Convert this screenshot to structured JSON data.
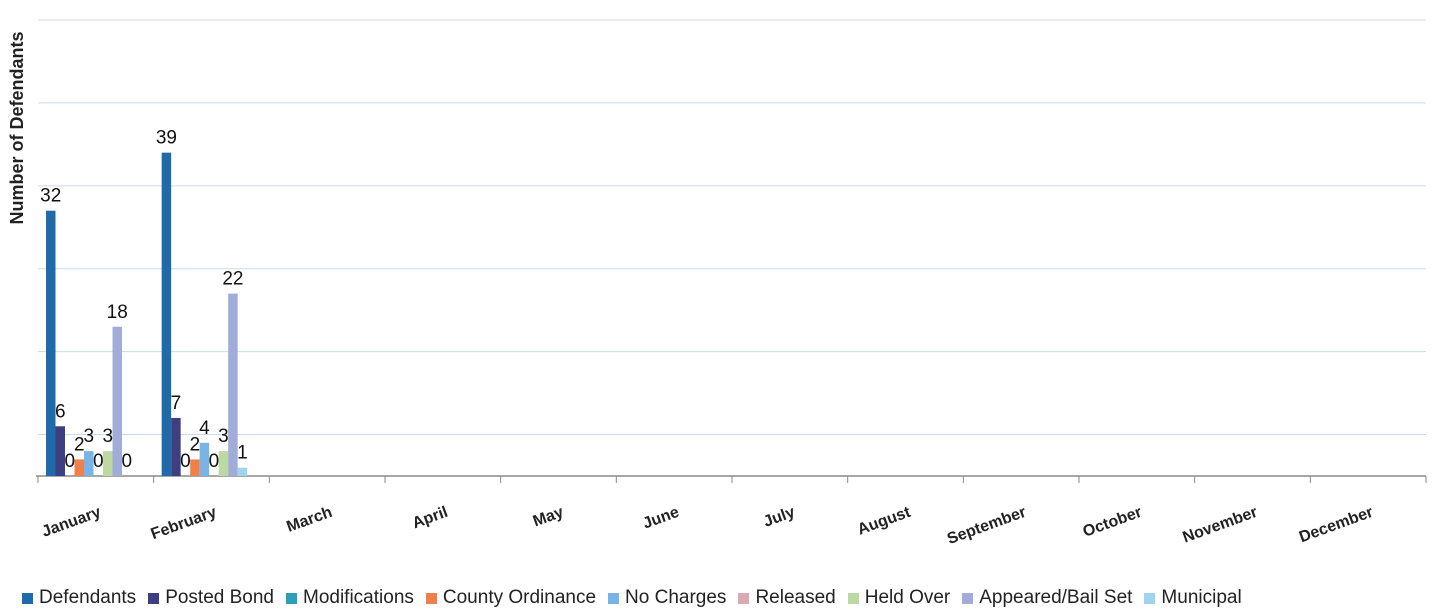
{
  "chart_data": {
    "type": "bar",
    "ylabel": "Number of Defendants",
    "xlabel": "",
    "ylim": [
      0,
      55
    ],
    "grid": true,
    "legend_position": "bottom",
    "categories": [
      "January",
      "February",
      "March",
      "April",
      "May",
      "June",
      "July",
      "August",
      "September",
      "October",
      "November",
      "December"
    ],
    "series": [
      {
        "name": "Defendants",
        "color": "#1f6aa8",
        "values": [
          32,
          39,
          null,
          null,
          null,
          null,
          null,
          null,
          null,
          null,
          null,
          null
        ]
      },
      {
        "name": "Posted Bond",
        "color": "#3d3f80",
        "values": [
          6,
          7,
          null,
          null,
          null,
          null,
          null,
          null,
          null,
          null,
          null,
          null
        ]
      },
      {
        "name": "Modifications",
        "color": "#2a9fb8",
        "values": [
          0,
          0,
          null,
          null,
          null,
          null,
          null,
          null,
          null,
          null,
          null,
          null
        ]
      },
      {
        "name": "County Ordinance",
        "color": "#f0804a",
        "values": [
          2,
          2,
          null,
          null,
          null,
          null,
          null,
          null,
          null,
          null,
          null,
          null
        ]
      },
      {
        "name": "No Charges",
        "color": "#7ab4e6",
        "values": [
          3,
          4,
          null,
          null,
          null,
          null,
          null,
          null,
          null,
          null,
          null,
          null
        ]
      },
      {
        "name": "Released",
        "color": "#d9a9b4",
        "values": [
          0,
          0,
          null,
          null,
          null,
          null,
          null,
          null,
          null,
          null,
          null,
          null
        ]
      },
      {
        "name": "Held Over",
        "color": "#bcd9a4",
        "values": [
          3,
          3,
          null,
          null,
          null,
          null,
          null,
          null,
          null,
          null,
          null,
          null
        ]
      },
      {
        "name": "Appeared/Bail Set",
        "color": "#a2acd9",
        "values": [
          18,
          22,
          null,
          null,
          null,
          null,
          null,
          null,
          null,
          null,
          null,
          null
        ]
      },
      {
        "name": "Municipal",
        "color": "#9fd4ee",
        "values": [
          0,
          1,
          null,
          null,
          null,
          null,
          null,
          null,
          null,
          null,
          null,
          null
        ]
      }
    ]
  }
}
